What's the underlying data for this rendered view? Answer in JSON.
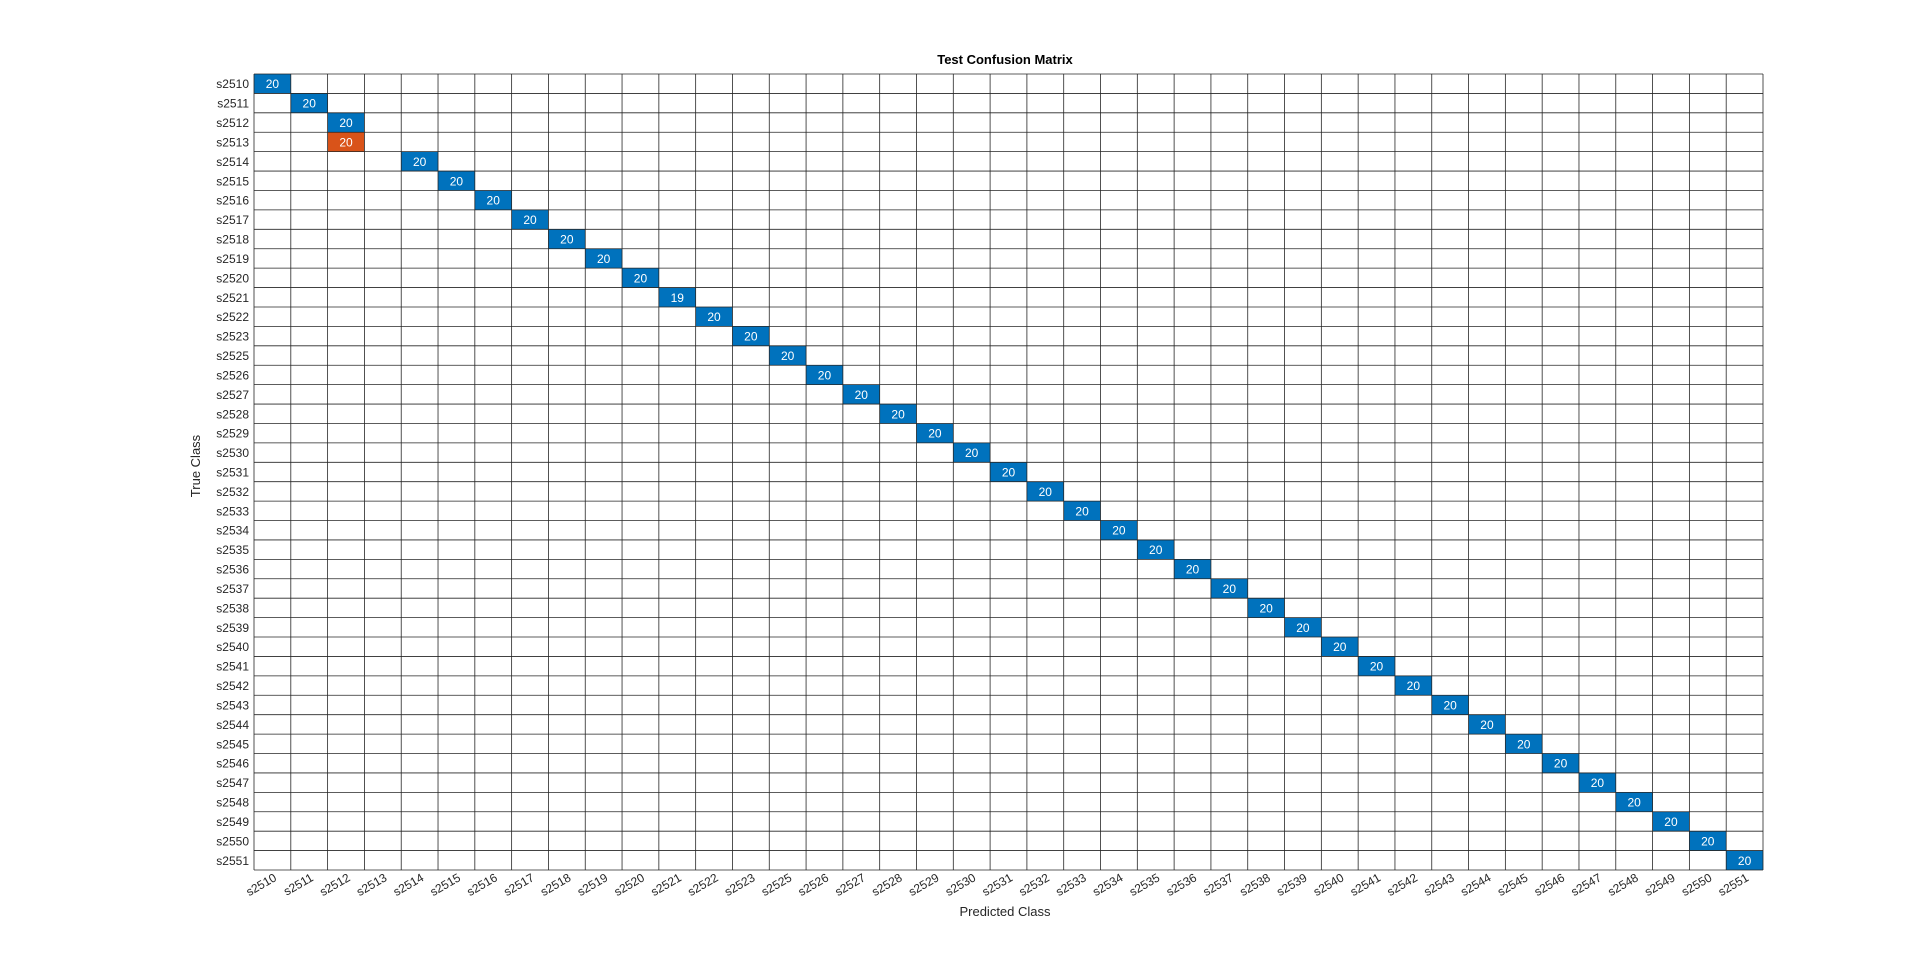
{
  "chart_data": {
    "type": "heatmap",
    "title": "Test Confusion Matrix",
    "xlabel": "Predicted Class",
    "ylabel": "True Class",
    "row_labels": [
      "s2510",
      "s2511",
      "s2512",
      "s2513",
      "s2514",
      "s2515",
      "s2516",
      "s2517",
      "s2518",
      "s2519",
      "s2520",
      "s2521",
      "s2522",
      "s2523",
      "s2525",
      "s2526",
      "s2527",
      "s2528",
      "s2529",
      "s2530",
      "s2531",
      "s2532",
      "s2533",
      "s2534",
      "s2535",
      "s2536",
      "s2537",
      "s2538",
      "s2539",
      "s2540",
      "s2541",
      "s2542",
      "s2543",
      "s2544",
      "s2545",
      "s2546",
      "s2547",
      "s2548",
      "s2549",
      "s2550",
      "s2551"
    ],
    "col_labels": [
      "s2510",
      "s2511",
      "s2512",
      "s2513",
      "s2514",
      "s2515",
      "s2516",
      "s2517",
      "s2518",
      "s2519",
      "s2520",
      "s2521",
      "s2522",
      "s2523",
      "s2525",
      "s2526",
      "s2527",
      "s2528",
      "s2529",
      "s2530",
      "s2531",
      "s2532",
      "s2533",
      "s2534",
      "s2535",
      "s2536",
      "s2537",
      "s2538",
      "s2539",
      "s2540",
      "s2541",
      "s2542",
      "s2543",
      "s2544",
      "s2545",
      "s2546",
      "s2547",
      "s2548",
      "s2549",
      "s2550",
      "s2551"
    ],
    "cells": [
      {
        "row": "s2510",
        "col": "s2510",
        "value": 20
      },
      {
        "row": "s2511",
        "col": "s2511",
        "value": 20
      },
      {
        "row": "s2512",
        "col": "s2512",
        "value": 20
      },
      {
        "row": "s2513",
        "col": "s2512",
        "value": 20
      },
      {
        "row": "s2514",
        "col": "s2514",
        "value": 20
      },
      {
        "row": "s2515",
        "col": "s2515",
        "value": 20
      },
      {
        "row": "s2516",
        "col": "s2516",
        "value": 20
      },
      {
        "row": "s2517",
        "col": "s2517",
        "value": 20
      },
      {
        "row": "s2518",
        "col": "s2518",
        "value": 20
      },
      {
        "row": "s2519",
        "col": "s2519",
        "value": 20
      },
      {
        "row": "s2520",
        "col": "s2520",
        "value": 20
      },
      {
        "row": "s2521",
        "col": "s2521",
        "value": 19
      },
      {
        "row": "s2522",
        "col": "s2522",
        "value": 20
      },
      {
        "row": "s2523",
        "col": "s2523",
        "value": 20
      },
      {
        "row": "s2525",
        "col": "s2525",
        "value": 20
      },
      {
        "row": "s2526",
        "col": "s2526",
        "value": 20
      },
      {
        "row": "s2527",
        "col": "s2527",
        "value": 20
      },
      {
        "row": "s2528",
        "col": "s2528",
        "value": 20
      },
      {
        "row": "s2529",
        "col": "s2529",
        "value": 20
      },
      {
        "row": "s2530",
        "col": "s2530",
        "value": 20
      },
      {
        "row": "s2531",
        "col": "s2531",
        "value": 20
      },
      {
        "row": "s2532",
        "col": "s2532",
        "value": 20
      },
      {
        "row": "s2533",
        "col": "s2533",
        "value": 20
      },
      {
        "row": "s2534",
        "col": "s2534",
        "value": 20
      },
      {
        "row": "s2535",
        "col": "s2535",
        "value": 20
      },
      {
        "row": "s2536",
        "col": "s2536",
        "value": 20
      },
      {
        "row": "s2537",
        "col": "s2537",
        "value": 20
      },
      {
        "row": "s2538",
        "col": "s2538",
        "value": 20
      },
      {
        "row": "s2539",
        "col": "s2539",
        "value": 20
      },
      {
        "row": "s2540",
        "col": "s2540",
        "value": 20
      },
      {
        "row": "s2541",
        "col": "s2541",
        "value": 20
      },
      {
        "row": "s2542",
        "col": "s2542",
        "value": 20
      },
      {
        "row": "s2543",
        "col": "s2543",
        "value": 20
      },
      {
        "row": "s2544",
        "col": "s2544",
        "value": 20
      },
      {
        "row": "s2545",
        "col": "s2545",
        "value": 20
      },
      {
        "row": "s2546",
        "col": "s2546",
        "value": 20
      },
      {
        "row": "s2547",
        "col": "s2547",
        "value": 20
      },
      {
        "row": "s2548",
        "col": "s2548",
        "value": 20
      },
      {
        "row": "s2549",
        "col": "s2549",
        "value": 20
      },
      {
        "row": "s2550",
        "col": "s2550",
        "value": 20
      },
      {
        "row": "s2551",
        "col": "s2551",
        "value": 20
      }
    ],
    "colors": {
      "correct": "#0072bd",
      "incorrect": "#d95319",
      "grid": "#262626",
      "cell_text": "#ffffff",
      "label_text": "#262626"
    },
    "grid": true
  }
}
